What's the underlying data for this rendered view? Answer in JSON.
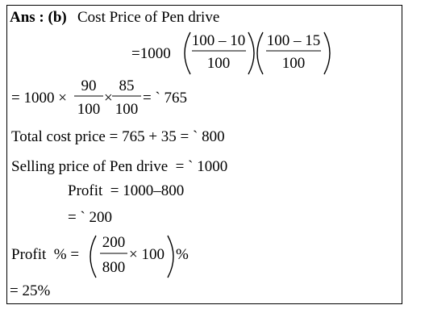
{
  "heading": {
    "label": "Ans : (b)",
    "text": "Cost Price of Pen drive"
  },
  "step1": {
    "lead": "=1000",
    "fractions": [
      {
        "num": "100 – 10",
        "den": "100"
      },
      {
        "num": "100 – 15",
        "den": "100"
      }
    ]
  },
  "step2": {
    "lead": "= 1000 ×",
    "fractions": [
      {
        "num": "90",
        "den": "100"
      },
      {
        "num": "85",
        "den": "100"
      }
    ],
    "between": "×",
    "result": "= ` 765"
  },
  "lines": [
    "Total cost price = 765 + 35 = ` 800",
    "Selling price of Pen drive  = ` 1000"
  ],
  "profit": {
    "line": "Profit  = 1000–800",
    "result": "= ` 200"
  },
  "profit_percent": {
    "lead": "Profit  % =",
    "fraction": {
      "num": "200",
      "den": "800"
    },
    "multiplier": "× 100",
    "unit": "%",
    "result": "= 25%"
  }
}
